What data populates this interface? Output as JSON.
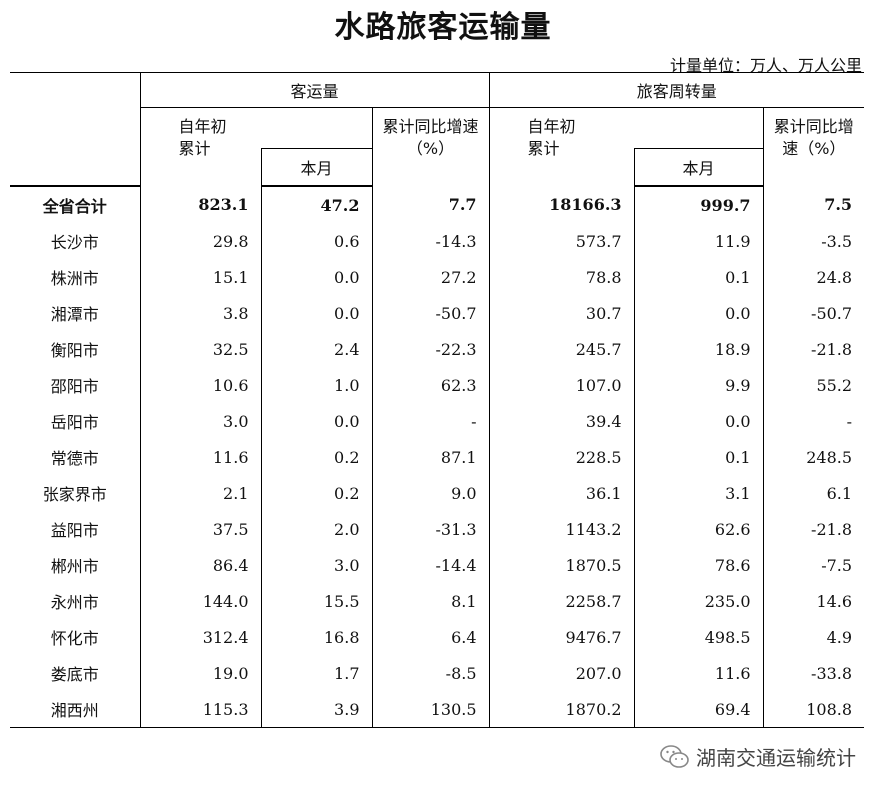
{
  "title": "水路旅客运输量",
  "unit_note": "计量单位：万人、万人公里",
  "headers": {
    "group_passenger": "客运量",
    "group_turnover": "旅客周转量",
    "ytd_line1": "自年初",
    "ytd_line2": "累计",
    "month": "本月",
    "growth_line1": "累计同比增速",
    "growth_line2": "（%）",
    "growth2_line1": "累计同比增",
    "growth2_line2": "速（%）"
  },
  "rows": [
    {
      "name": "全省合计",
      "p_ytd": "823.1",
      "p_month": "47.2",
      "p_growth": "7.7",
      "t_ytd": "18166.3",
      "t_month": "999.7",
      "t_growth": "7.5"
    },
    {
      "name": "长沙市",
      "p_ytd": "29.8",
      "p_month": "0.6",
      "p_growth": "-14.3",
      "t_ytd": "573.7",
      "t_month": "11.9",
      "t_growth": "-3.5"
    },
    {
      "name": "株洲市",
      "p_ytd": "15.1",
      "p_month": "0.0",
      "p_growth": "27.2",
      "t_ytd": "78.8",
      "t_month": "0.1",
      "t_growth": "24.8"
    },
    {
      "name": "湘潭市",
      "p_ytd": "3.8",
      "p_month": "0.0",
      "p_growth": "-50.7",
      "t_ytd": "30.7",
      "t_month": "0.0",
      "t_growth": "-50.7"
    },
    {
      "name": "衡阳市",
      "p_ytd": "32.5",
      "p_month": "2.4",
      "p_growth": "-22.3",
      "t_ytd": "245.7",
      "t_month": "18.9",
      "t_growth": "-21.8"
    },
    {
      "name": "邵阳市",
      "p_ytd": "10.6",
      "p_month": "1.0",
      "p_growth": "62.3",
      "t_ytd": "107.0",
      "t_month": "9.9",
      "t_growth": "55.2"
    },
    {
      "name": "岳阳市",
      "p_ytd": "3.0",
      "p_month": "0.0",
      "p_growth": "-",
      "t_ytd": "39.4",
      "t_month": "0.0",
      "t_growth": "-"
    },
    {
      "name": "常德市",
      "p_ytd": "11.6",
      "p_month": "0.2",
      "p_growth": "87.1",
      "t_ytd": "228.5",
      "t_month": "0.1",
      "t_growth": "248.5"
    },
    {
      "name": "张家界市",
      "p_ytd": "2.1",
      "p_month": "0.2",
      "p_growth": "9.0",
      "t_ytd": "36.1",
      "t_month": "3.1",
      "t_growth": "6.1"
    },
    {
      "name": "益阳市",
      "p_ytd": "37.5",
      "p_month": "2.0",
      "p_growth": "-31.3",
      "t_ytd": "1143.2",
      "t_month": "62.6",
      "t_growth": "-21.8"
    },
    {
      "name": "郴州市",
      "p_ytd": "86.4",
      "p_month": "3.0",
      "p_growth": "-14.4",
      "t_ytd": "1870.5",
      "t_month": "78.6",
      "t_growth": "-7.5"
    },
    {
      "name": "永州市",
      "p_ytd": "144.0",
      "p_month": "15.5",
      "p_growth": "8.1",
      "t_ytd": "2258.7",
      "t_month": "235.0",
      "t_growth": "14.6"
    },
    {
      "name": "怀化市",
      "p_ytd": "312.4",
      "p_month": "16.8",
      "p_growth": "6.4",
      "t_ytd": "9476.7",
      "t_month": "498.5",
      "t_growth": "4.9"
    },
    {
      "name": "娄底市",
      "p_ytd": "19.0",
      "p_month": "1.7",
      "p_growth": "-8.5",
      "t_ytd": "207.0",
      "t_month": "11.6",
      "t_growth": "-33.8"
    },
    {
      "name": "湘西州",
      "p_ytd": "115.3",
      "p_month": "3.9",
      "p_growth": "130.5",
      "t_ytd": "1870.2",
      "t_month": "69.4",
      "t_growth": "108.8"
    }
  ],
  "footer": {
    "icon": "wechat-icon",
    "text": "湖南交通运输统计"
  }
}
